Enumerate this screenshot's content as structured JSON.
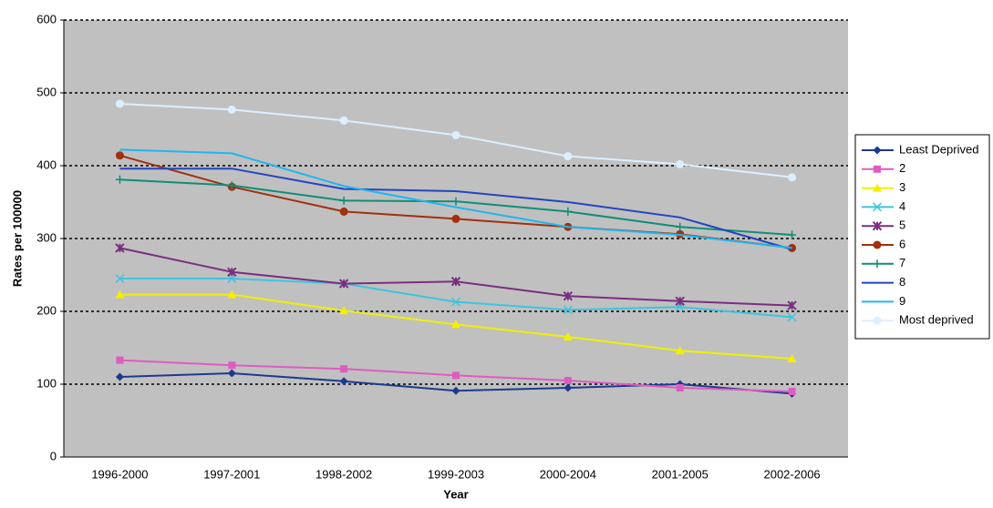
{
  "chart_data": {
    "type": "line",
    "x_label": "Year",
    "y_label": "Rates per 100000",
    "categories": [
      "1996-2000",
      "1997-2001",
      "1998-2002",
      "1999-2003",
      "2000-2004",
      "2001-2005",
      "2002-2006"
    ],
    "ylim": [
      0,
      600
    ],
    "yticks": [
      0,
      100,
      200,
      300,
      400,
      500,
      600
    ],
    "grid": true,
    "legend": "right",
    "series": [
      {
        "name": "Least Deprived",
        "color": "#1c3a8f",
        "marker": "diamond",
        "values": [
          110,
          115,
          104,
          91,
          95,
          100,
          87
        ]
      },
      {
        "name": "2",
        "color": "#de5cc0",
        "marker": "square",
        "values": [
          133,
          126,
          121,
          112,
          105,
          95,
          90
        ]
      },
      {
        "name": "3",
        "color": "#f2f000",
        "marker": "triangle",
        "values": [
          223,
          223,
          201,
          182,
          165,
          146,
          135
        ]
      },
      {
        "name": "4",
        "color": "#3cc4e0",
        "marker": "x",
        "values": [
          245,
          245,
          238,
          213,
          202,
          206,
          192
        ]
      },
      {
        "name": "5",
        "color": "#7a2e80",
        "marker": "star",
        "values": [
          287,
          254,
          238,
          241,
          221,
          214,
          208
        ]
      },
      {
        "name": "6",
        "color": "#a0300e",
        "marker": "circle",
        "values": [
          414,
          371,
          337,
          327,
          316,
          306,
          287
        ]
      },
      {
        "name": "7",
        "color": "#108e78",
        "marker": "plus",
        "values": [
          381,
          373,
          352,
          351,
          337,
          316,
          305
        ]
      },
      {
        "name": "8",
        "color": "#2244c0",
        "marker": "none",
        "values": [
          396,
          396,
          368,
          365,
          350,
          329,
          285
        ]
      },
      {
        "name": "9",
        "color": "#1eb6f0",
        "marker": "none",
        "values": [
          422,
          417,
          372,
          343,
          316,
          305,
          287
        ]
      },
      {
        "name": "Most deprived",
        "color": "#dcefff",
        "marker": "circle",
        "values": [
          485,
          477,
          462,
          442,
          413,
          402,
          384
        ]
      }
    ]
  }
}
